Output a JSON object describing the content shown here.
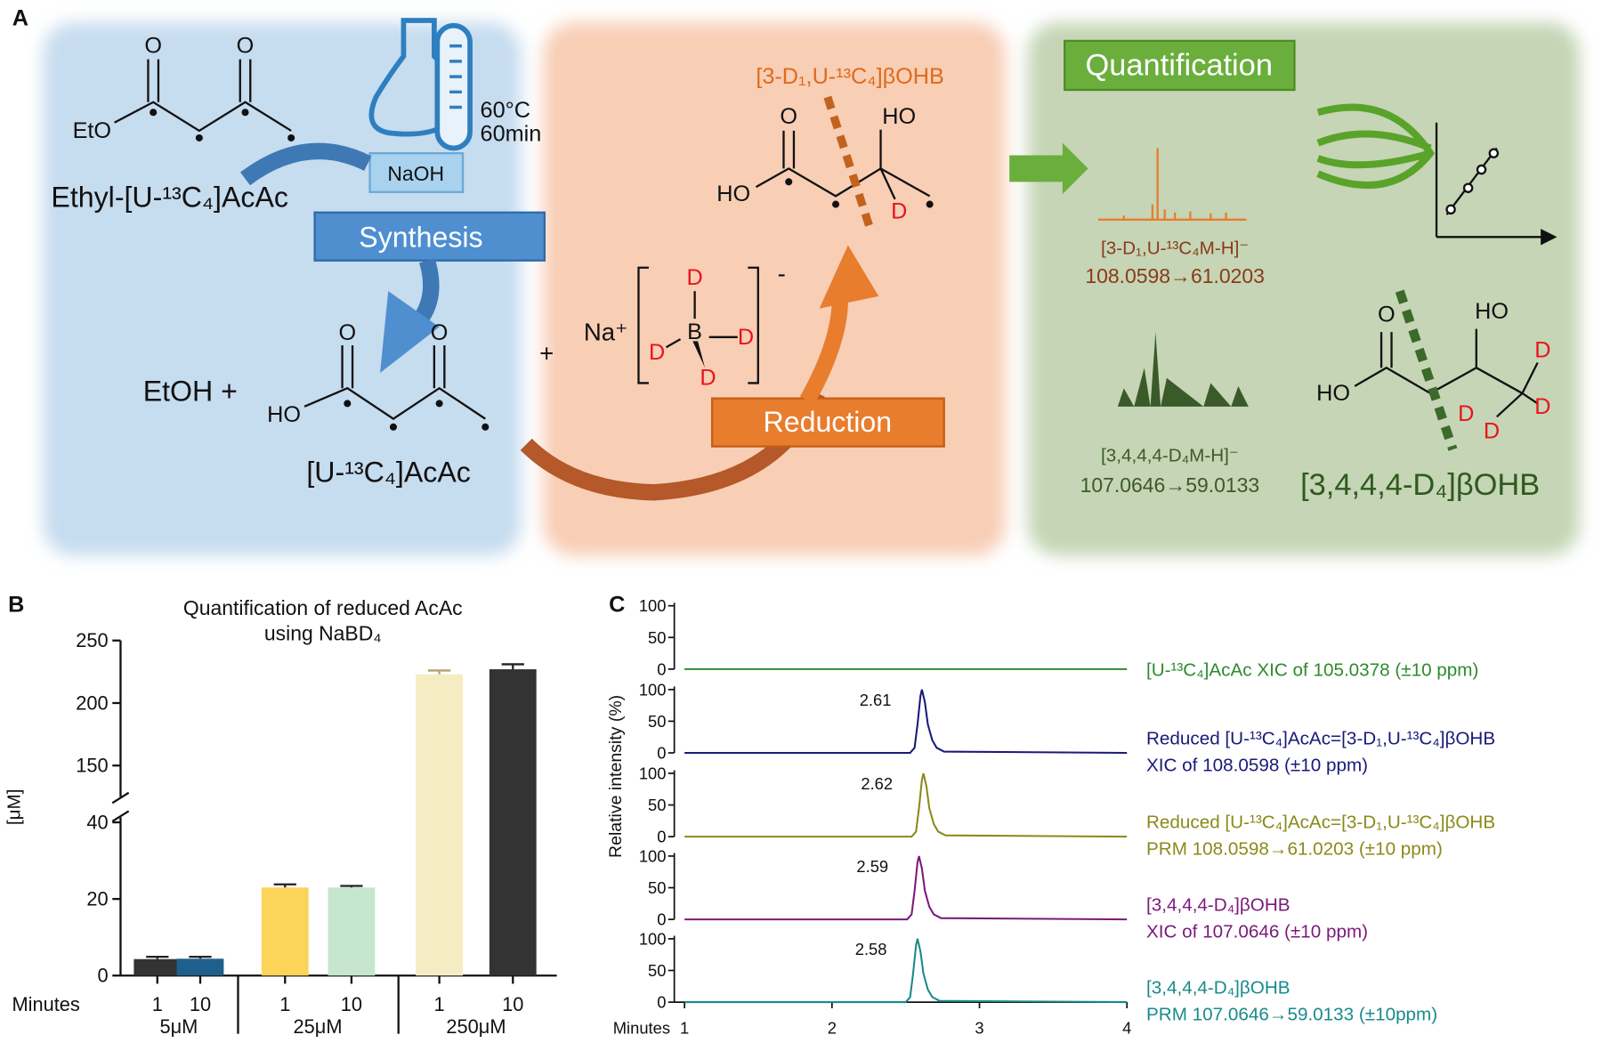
{
  "panel_a": {
    "label": "A",
    "synthesis": {
      "condition_temp": "60°C",
      "condition_time": "60min",
      "reagent": "NaOH",
      "step": "Synthesis",
      "start": "Ethyl-[U-¹³C₄]AcAc",
      "byproduct": "EtOH +",
      "product": "[U-¹³C₄]AcAc",
      "start_atoms": [
        "O",
        "O",
        "EtO"
      ],
      "product_atoms": [
        "O",
        "O",
        "HO"
      ]
    },
    "reduction": {
      "plus": "+",
      "cation": "Na⁺",
      "charge": "-",
      "boron": "B",
      "deuteriums": [
        "D",
        "D",
        "D",
        "D"
      ],
      "step": "Reduction",
      "product": "[3-D₁,U-¹³C₄]βOHB",
      "product_atoms": [
        "O",
        "HO",
        "HO",
        "D"
      ]
    },
    "quantification": {
      "title": "Quantification",
      "ion_1": "[3-D₁,U-¹³C₄M-H]⁻",
      "transition_1": "108.0598→61.0203",
      "ion_2": "[3,4,4,4-D₄M-H]⁻",
      "transition_2": "107.0646→59.0133",
      "standard": "[3,4,4,4-D₄]βOHB",
      "standard_atoms": [
        "O",
        "HO",
        "HO",
        "D",
        "D",
        "D",
        "D"
      ]
    }
  },
  "chart_data": [
    {
      "type": "bar",
      "panel_label": "B",
      "title": [
        "Quantification of reduced AcAc",
        "using NaBD₄"
      ],
      "y_label": "[μM]",
      "x_label": "Minutes",
      "categories": [
        "1",
        "10",
        "1",
        "10",
        "1",
        "10"
      ],
      "groups": [
        "5μM",
        "25μM",
        "250μM"
      ],
      "values": [
        4.3,
        4.4,
        23,
        23,
        223,
        227
      ],
      "errors": [
        0.6,
        0.5,
        0.8,
        0.4,
        3,
        4
      ],
      "colors": [
        "#333333",
        "#1f5f8b",
        "#fdd45a",
        "#c6e6cf",
        "#f6ecc4",
        "#333333"
      ],
      "axis_segments": [
        {
          "ylim": [
            0,
            40
          ],
          "yticks": [
            0,
            20,
            40
          ]
        },
        {
          "ylim": [
            125,
            250
          ],
          "yticks": [
            150,
            200,
            250
          ]
        }
      ]
    },
    {
      "type": "line",
      "panel_label": "C",
      "y_label": "Relative intensity (%)",
      "x_label": "Minutes",
      "xlim": [
        1,
        4
      ],
      "xticks": [
        1,
        2,
        3,
        4
      ],
      "ylim": [
        0,
        100
      ],
      "yticks": [
        0,
        50,
        100
      ],
      "series": [
        {
          "name": [
            "[U-¹³C₄]AcAc XIC of 105.0378 (±10 ppm)"
          ],
          "color": "#2e8b2e",
          "x": [
            1,
            4
          ],
          "values": [
            0,
            0
          ]
        },
        {
          "name": [
            "Reduced [U-¹³C₄]AcAc=[3-D₁,U-¹³C₄]βOHB",
            "XIC of 108.0598 (±10 ppm)"
          ],
          "color": "#1a1a7a",
          "peak_label": 2.61,
          "x": [
            1,
            2.53,
            2.56,
            2.58,
            2.6,
            2.61,
            2.63,
            2.65,
            2.68,
            2.71,
            2.76,
            4
          ],
          "values": [
            0,
            0,
            8,
            45,
            90,
            100,
            80,
            45,
            20,
            8,
            2,
            0
          ]
        },
        {
          "name": [
            "Reduced [U-¹³C₄]AcAc=[3-D₁,U-¹³C₄]βOHB",
            "PRM 108.0598→61.0203 (±10 ppm)"
          ],
          "color": "#8a8a1a",
          "peak_label": 2.62,
          "x": [
            1,
            2.54,
            2.57,
            2.59,
            2.61,
            2.62,
            2.64,
            2.66,
            2.69,
            2.72,
            2.77,
            4
          ],
          "values": [
            0,
            0,
            8,
            45,
            90,
            100,
            80,
            45,
            20,
            8,
            2,
            0
          ]
        },
        {
          "name": [
            "[3,4,4,4-D₄]βOHB",
            "XIC of 107.0646 (±10 ppm)"
          ],
          "color": "#7a1a7a",
          "peak_label": 2.59,
          "x": [
            1,
            2.51,
            2.54,
            2.56,
            2.58,
            2.59,
            2.61,
            2.63,
            2.66,
            2.69,
            2.74,
            4
          ],
          "values": [
            0,
            0,
            8,
            45,
            90,
            100,
            80,
            45,
            20,
            8,
            2,
            0
          ]
        },
        {
          "name": [
            "[3,4,4,4-D₄]βOHB",
            "PRM 107.0646→59.0133 (±10ppm)"
          ],
          "color": "#1a8a8a",
          "peak_label": 2.58,
          "x": [
            1,
            2.5,
            2.53,
            2.55,
            2.57,
            2.58,
            2.6,
            2.62,
            2.65,
            2.68,
            2.73,
            4
          ],
          "values": [
            0,
            0,
            8,
            45,
            90,
            100,
            80,
            45,
            20,
            8,
            2,
            0
          ]
        }
      ]
    }
  ]
}
